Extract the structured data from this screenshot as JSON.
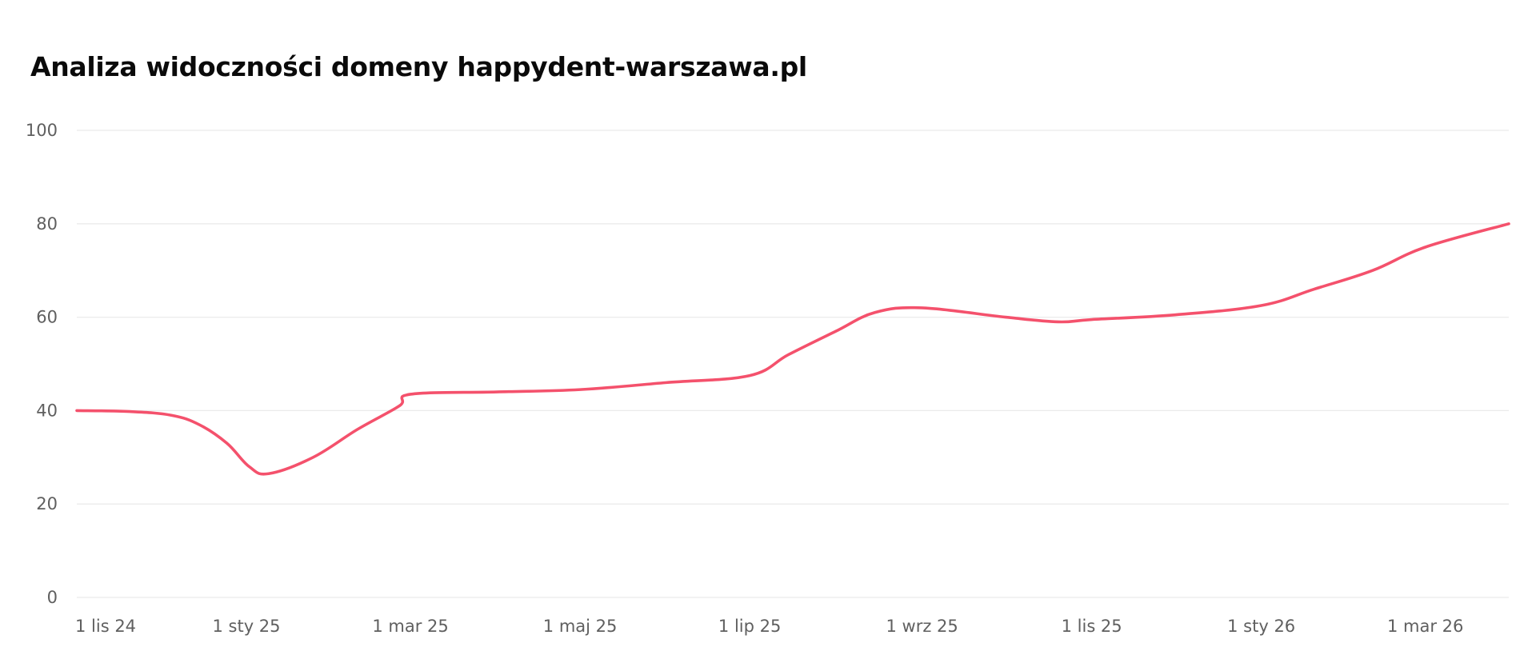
{
  "chart_data": {
    "type": "line",
    "title": "Analiza widoczności domeny happydent-warszawa.pl",
    "xlabel": "",
    "ylabel": "",
    "ylim": [
      0,
      100
    ],
    "yticks": [
      0,
      20,
      40,
      60,
      80,
      100
    ],
    "grid": true,
    "legend": "none",
    "xlim": [
      "2024-11-01",
      "2026-03-31"
    ],
    "xticks": [
      {
        "date": "2024-11-01",
        "label": "1 lis 24"
      },
      {
        "date": "2025-01-01",
        "label": "1 sty 25"
      },
      {
        "date": "2025-03-01",
        "label": "1 mar 25"
      },
      {
        "date": "2025-05-01",
        "label": "1 maj 25"
      },
      {
        "date": "2025-07-01",
        "label": "1 lip 25"
      },
      {
        "date": "2025-09-01",
        "label": "1 wrz 25"
      },
      {
        "date": "2025-11-01",
        "label": "1 lis 25"
      },
      {
        "date": "2026-01-01",
        "label": "1 sty 26"
      },
      {
        "date": "2026-03-01",
        "label": "1 mar 26"
      }
    ],
    "series": [
      {
        "color": "#f4516c",
        "points": [
          {
            "x": "2024-11-01",
            "y": 40
          },
          {
            "x": "2024-11-20",
            "y": 39.8
          },
          {
            "x": "2024-12-05",
            "y": 39
          },
          {
            "x": "2024-12-15",
            "y": 37
          },
          {
            "x": "2024-12-25",
            "y": 33
          },
          {
            "x": "2025-01-02",
            "y": 28
          },
          {
            "x": "2025-01-09",
            "y": 26.5
          },
          {
            "x": "2025-01-25",
            "y": 30
          },
          {
            "x": "2025-02-10",
            "y": 36
          },
          {
            "x": "2025-02-25",
            "y": 41
          },
          {
            "x": "2025-03-01",
            "y": 43.5
          },
          {
            "x": "2025-04-01",
            "y": 44
          },
          {
            "x": "2025-05-01",
            "y": 44.5
          },
          {
            "x": "2025-06-01",
            "y": 46
          },
          {
            "x": "2025-07-01",
            "y": 47.5
          },
          {
            "x": "2025-07-15",
            "y": 52
          },
          {
            "x": "2025-08-01",
            "y": 57
          },
          {
            "x": "2025-08-15",
            "y": 61
          },
          {
            "x": "2025-09-01",
            "y": 62
          },
          {
            "x": "2025-10-01",
            "y": 60
          },
          {
            "x": "2025-10-20",
            "y": 59
          },
          {
            "x": "2025-11-01",
            "y": 59.5
          },
          {
            "x": "2025-12-01",
            "y": 60.5
          },
          {
            "x": "2026-01-01",
            "y": 62.5
          },
          {
            "x": "2026-01-20",
            "y": 66
          },
          {
            "x": "2026-02-10",
            "y": 70
          },
          {
            "x": "2026-03-01",
            "y": 75
          },
          {
            "x": "2026-03-31",
            "y": 80
          }
        ]
      }
    ]
  }
}
